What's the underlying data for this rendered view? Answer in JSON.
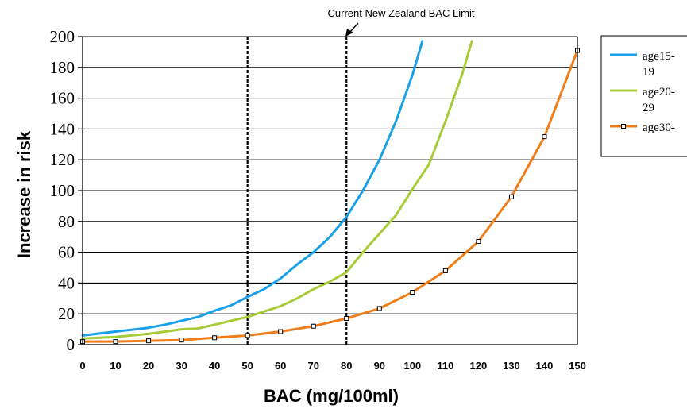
{
  "chart_data": {
    "type": "line",
    "title": "",
    "xlabel": "BAC (mg/100ml)",
    "ylabel": "Increase in risk",
    "xlim": [
      0,
      150
    ],
    "ylim": [
      0,
      200
    ],
    "x_ticks": [
      0,
      10,
      20,
      30,
      40,
      50,
      60,
      70,
      80,
      90,
      100,
      110,
      120,
      130,
      140,
      150
    ],
    "y_ticks": [
      0,
      20,
      40,
      60,
      80,
      100,
      120,
      140,
      160,
      180,
      200
    ],
    "grid": "horizontal",
    "legend_position": "right (clipped)",
    "annotation": "Current New Zealand BAC Limit",
    "reference_lines": [
      50,
      80
    ],
    "series": [
      {
        "name": "age15-19",
        "color": "#1aa0e8",
        "markers": false,
        "x": [
          0,
          10,
          20,
          25,
          30,
          35,
          40,
          45,
          50,
          55,
          60,
          65,
          70,
          75,
          80,
          85,
          90,
          95,
          100,
          103
        ],
        "y": [
          6,
          8.5,
          11,
          13,
          15.5,
          18,
          22,
          25.5,
          31,
          36,
          43,
          52,
          60,
          70,
          83,
          100,
          120,
          145,
          175,
          197
        ]
      },
      {
        "name": "age20-29",
        "color": "#a8cc38",
        "markers": false,
        "x": [
          0,
          10,
          20,
          30,
          35,
          40,
          45,
          50,
          55,
          60,
          65,
          70,
          75,
          80,
          85,
          90,
          95,
          100,
          105,
          110,
          115,
          118
        ],
        "y": [
          4,
          5,
          7,
          10,
          10.5,
          13,
          15.5,
          18,
          21.5,
          25,
          30,
          36,
          41,
          47,
          60,
          72,
          84,
          101,
          117,
          145,
          175,
          197
        ]
      },
      {
        "name": "age30-",
        "color": "#ef7d1a",
        "markers": true,
        "x": [
          0,
          10,
          20,
          30,
          40,
          50,
          60,
          70,
          80,
          90,
          100,
          110,
          120,
          130,
          140,
          150
        ],
        "y": [
          2,
          2,
          2.5,
          3,
          4.5,
          6,
          8.5,
          12,
          17,
          23.5,
          34,
          48,
          67,
          96,
          135,
          191
        ]
      }
    ]
  },
  "legend": {
    "items": [
      {
        "line1": "age15-",
        "line2": "19"
      },
      {
        "line1": "age20-",
        "line2": "29"
      },
      {
        "line1": "age30-",
        "line2": ""
      }
    ]
  }
}
